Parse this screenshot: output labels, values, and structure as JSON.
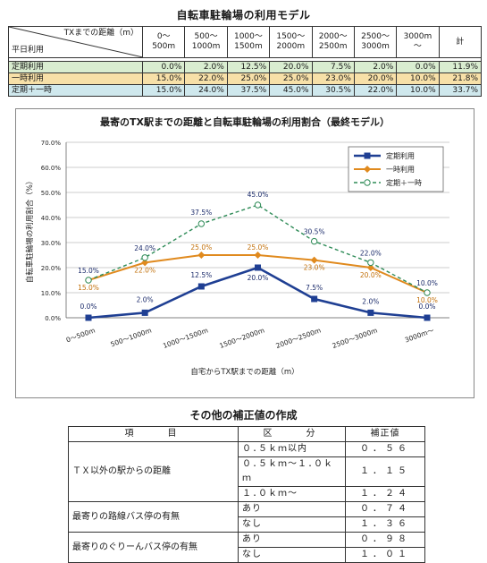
{
  "model_title": "自転車駐輪場の利用モデル",
  "model_table": {
    "corner_top": "TXまでの距離（m）",
    "corner_bottom": "平日利用",
    "columns": [
      "0～\n500m",
      "500～\n1000m",
      "1000～\n1500m",
      "1500～\n2000m",
      "2000～\n2500m",
      "2500～\n3000m",
      "3000m\n～",
      "計"
    ],
    "rows": [
      {
        "label": "定期利用",
        "values": [
          "0.0%",
          "2.0%",
          "12.5%",
          "20.0%",
          "7.5%",
          "2.0%",
          "0.0%",
          "11.9%"
        ]
      },
      {
        "label": "一時利用",
        "values": [
          "15.0%",
          "22.0%",
          "25.0%",
          "25.0%",
          "23.0%",
          "20.0%",
          "10.0%",
          "21.8%"
        ]
      },
      {
        "label": "定期＋一時",
        "values": [
          "15.0%",
          "24.0%",
          "37.5%",
          "45.0%",
          "30.5%",
          "22.0%",
          "10.0%",
          "33.7%"
        ]
      }
    ]
  },
  "chart_data": {
    "type": "line",
    "title": "最寄のTX駅までの距離と自転車駐輪場の利用割合（最終モデル）",
    "xlabel": "自宅からTX駅までの距離（m）",
    "ylabel": "自転車駐輪場の利用割合（%）",
    "categories": [
      "0～500m",
      "500～1000m",
      "1000～1500m",
      "1500～2000m",
      "2000～2500m",
      "2500～3000m",
      "3000m～"
    ],
    "ylim": [
      0,
      70
    ],
    "yticks": [
      "0.0%",
      "10.0%",
      "20.0%",
      "30.0%",
      "40.0%",
      "50.0%",
      "60.0%",
      "70.0%"
    ],
    "legend_position": "top-right",
    "series": [
      {
        "name": "定期利用",
        "values": [
          0.0,
          2.0,
          12.5,
          20.0,
          7.5,
          2.0,
          0.0
        ],
        "labels": [
          "0.0%",
          "2.0%",
          "12.5%",
          "20.0%",
          "7.5%",
          "2.0%",
          "0.0%"
        ],
        "color": "#1f3f93"
      },
      {
        "name": "一時利用",
        "values": [
          15.0,
          22.0,
          25.0,
          25.0,
          23.0,
          20.0,
          10.0
        ],
        "labels": [
          "15.0%",
          "22.0%",
          "25.0%",
          "25.0%",
          "23.0%",
          "20.0%",
          "10.0%"
        ],
        "color": "#e08a1e"
      },
      {
        "name": "定期＋一時",
        "values": [
          15.0,
          24.0,
          37.5,
          45.0,
          30.5,
          22.0,
          10.0
        ],
        "labels": [
          "15.0%",
          "24.0%",
          "37.5%",
          "45.0%",
          "30.5%",
          "22.0%",
          "10.0%"
        ],
        "color": "#2e8b57"
      }
    ]
  },
  "correction_title": "その他の補正値の作成",
  "correction_table": {
    "headers": [
      "項　　目",
      "区　　分",
      "補正値"
    ],
    "groups": [
      {
        "item": "ＴＸ以外の駅からの距離",
        "rows": [
          {
            "category": "０.５ｋｍ以内",
            "value": "０．５６"
          },
          {
            "category": "０.５ｋｍ～１.０ｋｍ",
            "value": "１．１５"
          },
          {
            "category": "１.０ｋｍ～",
            "value": "１．２４"
          }
        ]
      },
      {
        "item": "最寄りの路線バス停の有無",
        "rows": [
          {
            "category": "あり",
            "value": "０．７４"
          },
          {
            "category": "なし",
            "value": "１．３６"
          }
        ]
      },
      {
        "item": "最寄りのぐりーんバス停の有無",
        "rows": [
          {
            "category": "あり",
            "value": "０．９８"
          },
          {
            "category": "なし",
            "value": "１．０１"
          }
        ]
      }
    ]
  }
}
